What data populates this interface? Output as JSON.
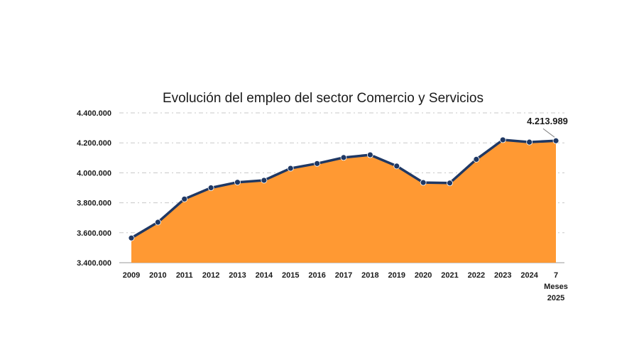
{
  "chart_data": {
    "type": "area",
    "title": "Evolución del empleo del sector Comercio y Servicios",
    "categories": [
      "2009",
      "2010",
      "2011",
      "2012",
      "2013",
      "2014",
      "2015",
      "2016",
      "2017",
      "2018",
      "2019",
      "2020",
      "2021",
      "2022",
      "2023",
      "2024",
      "7 Meses 2025"
    ],
    "category_lines": [
      [
        "2009"
      ],
      [
        "2010"
      ],
      [
        "2011"
      ],
      [
        "2012"
      ],
      [
        "2013"
      ],
      [
        "2014"
      ],
      [
        "2015"
      ],
      [
        "2016"
      ],
      [
        "2017"
      ],
      [
        "2018"
      ],
      [
        "2019"
      ],
      [
        "2020"
      ],
      [
        "2021"
      ],
      [
        "2022"
      ],
      [
        "2023"
      ],
      [
        "2024"
      ],
      [
        "7",
        "Meses",
        "2025"
      ]
    ],
    "values": [
      3565000,
      3670000,
      3825000,
      3900000,
      3937000,
      3950000,
      4030000,
      4062000,
      4102000,
      4120000,
      4045000,
      3935000,
      3932000,
      4090000,
      4220000,
      4205000,
      4213989
    ],
    "ylim": [
      3400000,
      4400000
    ],
    "yticks": [
      3400000,
      3600000,
      3800000,
      4000000,
      4200000,
      4400000
    ],
    "ytick_labels": [
      "3.400.000",
      "3.600.000",
      "3.800.000",
      "4.000.000",
      "4.200.000",
      "4.400.000"
    ],
    "data_label": {
      "index": 16,
      "text": "4.213.989"
    },
    "grid": true,
    "xlabel": "",
    "ylabel": "",
    "colors": {
      "area": "#FF9933",
      "line": "#1F3864",
      "marker": "#1F3864",
      "text": "#1a1a1a"
    }
  }
}
